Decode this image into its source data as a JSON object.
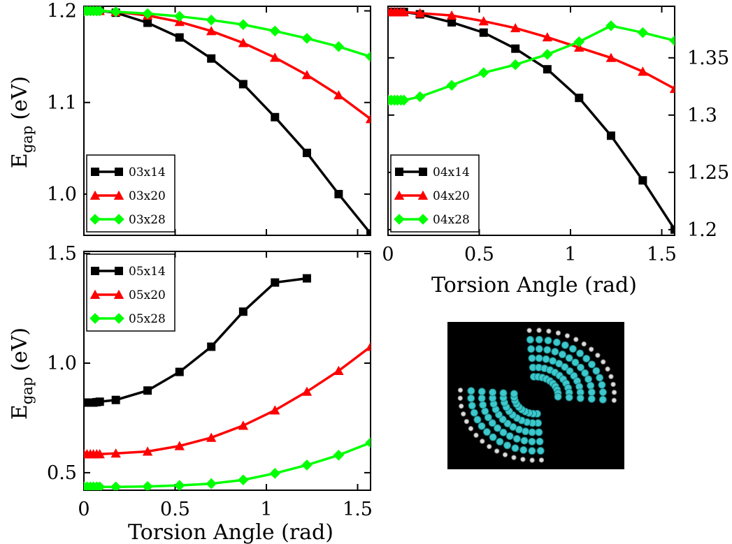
{
  "figure": {
    "ylabel_main": "E",
    "ylabel_sub": "gap",
    "ylabel_unit": "(eV)",
    "xlabel": "Torsion Angle (rad)",
    "image_name": "twisted-nanoribbon-molecule"
  },
  "colors": {
    "black": "#000000",
    "red": "#ff0000",
    "green": "#00ff00"
  },
  "chart_data": [
    {
      "type": "line",
      "panel": "top-left",
      "xlim": [
        0,
        1.5708
      ],
      "ylim": [
        0.955,
        1.205
      ],
      "x_ticks": [
        0,
        0.5,
        1,
        1.5
      ],
      "y_ticks": [
        1.0,
        1.1,
        1.2
      ],
      "y_tick_labels": [
        "1.0",
        "1.1",
        "1.2"
      ],
      "x_tick_labels_visible": false,
      "legend_position": "bottom-left",
      "series": [
        {
          "name": "03x14",
          "color": "#000000",
          "marker": "square",
          "x": [
            0,
            0.017,
            0.035,
            0.052,
            0.07,
            0.087,
            0.175,
            0.349,
            0.524,
            0.698,
            0.873,
            1.047,
            1.222,
            1.396,
            1.571
          ],
          "y": [
            1.2,
            1.2,
            1.2,
            1.2,
            1.2,
            1.2,
            1.198,
            1.187,
            1.171,
            1.148,
            1.12,
            1.084,
            1.045,
            1.0,
            0.957
          ]
        },
        {
          "name": "03x20",
          "color": "#ff0000",
          "marker": "triangle",
          "x": [
            0,
            0.017,
            0.035,
            0.052,
            0.07,
            0.087,
            0.175,
            0.349,
            0.524,
            0.698,
            0.873,
            1.047,
            1.222,
            1.396,
            1.571
          ],
          "y": [
            1.2,
            1.2,
            1.2,
            1.2,
            1.2,
            1.2,
            1.199,
            1.195,
            1.188,
            1.178,
            1.165,
            1.149,
            1.13,
            1.108,
            1.082
          ]
        },
        {
          "name": "03x28",
          "color": "#00ff00",
          "marker": "diamond",
          "x": [
            0,
            0.017,
            0.035,
            0.052,
            0.07,
            0.087,
            0.175,
            0.349,
            0.524,
            0.698,
            0.873,
            1.047,
            1.222,
            1.396,
            1.571
          ],
          "y": [
            1.2,
            1.2,
            1.2,
            1.2,
            1.2,
            1.2,
            1.199,
            1.197,
            1.194,
            1.19,
            1.185,
            1.178,
            1.17,
            1.161,
            1.15
          ]
        }
      ]
    },
    {
      "type": "line",
      "panel": "top-right",
      "xlim": [
        0,
        1.5708
      ],
      "ylim": [
        1.195,
        1.395
      ],
      "x_ticks": [
        0,
        0.5,
        1,
        1.5
      ],
      "x_tick_labels": [
        "0",
        "0.5",
        "1",
        "1.5"
      ],
      "y_ticks": [
        1.2,
        1.25,
        1.3,
        1.35
      ],
      "y_tick_labels": [
        "1.2",
        "1.25",
        "1.3",
        "1.35"
      ],
      "y_axis_side": "right",
      "xlabel": "Torsion Angle (rad)",
      "legend_position": "bottom-left",
      "series": [
        {
          "name": "04x14",
          "color": "#000000",
          "marker": "square",
          "x": [
            0,
            0.017,
            0.035,
            0.052,
            0.07,
            0.087,
            0.175,
            0.349,
            0.524,
            0.698,
            0.873,
            1.047,
            1.222,
            1.396,
            1.571
          ],
          "y": [
            1.39,
            1.39,
            1.39,
            1.39,
            1.39,
            1.39,
            1.388,
            1.381,
            1.372,
            1.358,
            1.34,
            1.315,
            1.282,
            1.243,
            1.2
          ]
        },
        {
          "name": "04x20",
          "color": "#ff0000",
          "marker": "triangle",
          "x": [
            0,
            0.017,
            0.035,
            0.052,
            0.07,
            0.087,
            0.175,
            0.349,
            0.524,
            0.698,
            0.873,
            1.047,
            1.222,
            1.396,
            1.571
          ],
          "y": [
            1.39,
            1.39,
            1.39,
            1.39,
            1.39,
            1.39,
            1.389,
            1.387,
            1.382,
            1.376,
            1.368,
            1.359,
            1.35,
            1.338,
            1.323
          ]
        },
        {
          "name": "04x28",
          "color": "#00ff00",
          "marker": "diamond",
          "x": [
            0,
            0.017,
            0.035,
            0.052,
            0.07,
            0.087,
            0.175,
            0.349,
            0.524,
            0.698,
            0.873,
            1.047,
            1.222,
            1.396,
            1.571
          ],
          "y": [
            1.313,
            1.313,
            1.313,
            1.313,
            1.313,
            1.313,
            1.316,
            1.326,
            1.337,
            1.344,
            1.353,
            1.364,
            1.378,
            1.372,
            1.365
          ]
        }
      ]
    },
    {
      "type": "line",
      "panel": "bottom-left",
      "xlim": [
        0,
        1.5708
      ],
      "ylim": [
        0.42,
        1.51
      ],
      "x_ticks": [
        0,
        0.5,
        1,
        1.5
      ],
      "x_tick_labels": [
        "0",
        "0.5",
        "1",
        "1.5"
      ],
      "y_ticks": [
        0.5,
        1.0,
        1.5
      ],
      "y_tick_labels": [
        "0.5",
        "1.0",
        "1.5"
      ],
      "xlabel": "Torsion Angle (rad)",
      "legend_position": "top-left",
      "series": [
        {
          "name": "05x14",
          "color": "#000000",
          "marker": "square",
          "x": [
            0,
            0.017,
            0.035,
            0.052,
            0.07,
            0.087,
            0.175,
            0.349,
            0.524,
            0.698,
            0.873,
            1.047,
            1.222
          ],
          "y": [
            0.82,
            0.82,
            0.82,
            0.82,
            0.822,
            0.824,
            0.832,
            0.875,
            0.96,
            1.075,
            1.235,
            1.368,
            1.387
          ]
        },
        {
          "name": "05x20",
          "color": "#ff0000",
          "marker": "triangle",
          "x": [
            0,
            0.017,
            0.035,
            0.052,
            0.07,
            0.087,
            0.175,
            0.349,
            0.524,
            0.698,
            0.873,
            1.047,
            1.222,
            1.396,
            1.571
          ],
          "y": [
            0.585,
            0.585,
            0.585,
            0.585,
            0.585,
            0.585,
            0.588,
            0.597,
            0.622,
            0.66,
            0.715,
            0.785,
            0.87,
            0.965,
            1.075
          ]
        },
        {
          "name": "05x28",
          "color": "#00ff00",
          "marker": "diamond",
          "x": [
            0,
            0.017,
            0.035,
            0.052,
            0.07,
            0.087,
            0.175,
            0.349,
            0.524,
            0.698,
            0.873,
            1.047,
            1.222,
            1.396,
            1.571
          ],
          "y": [
            0.435,
            0.435,
            0.435,
            0.435,
            0.435,
            0.435,
            0.435,
            0.437,
            0.442,
            0.45,
            0.467,
            0.497,
            0.535,
            0.58,
            0.637
          ]
        }
      ]
    }
  ]
}
